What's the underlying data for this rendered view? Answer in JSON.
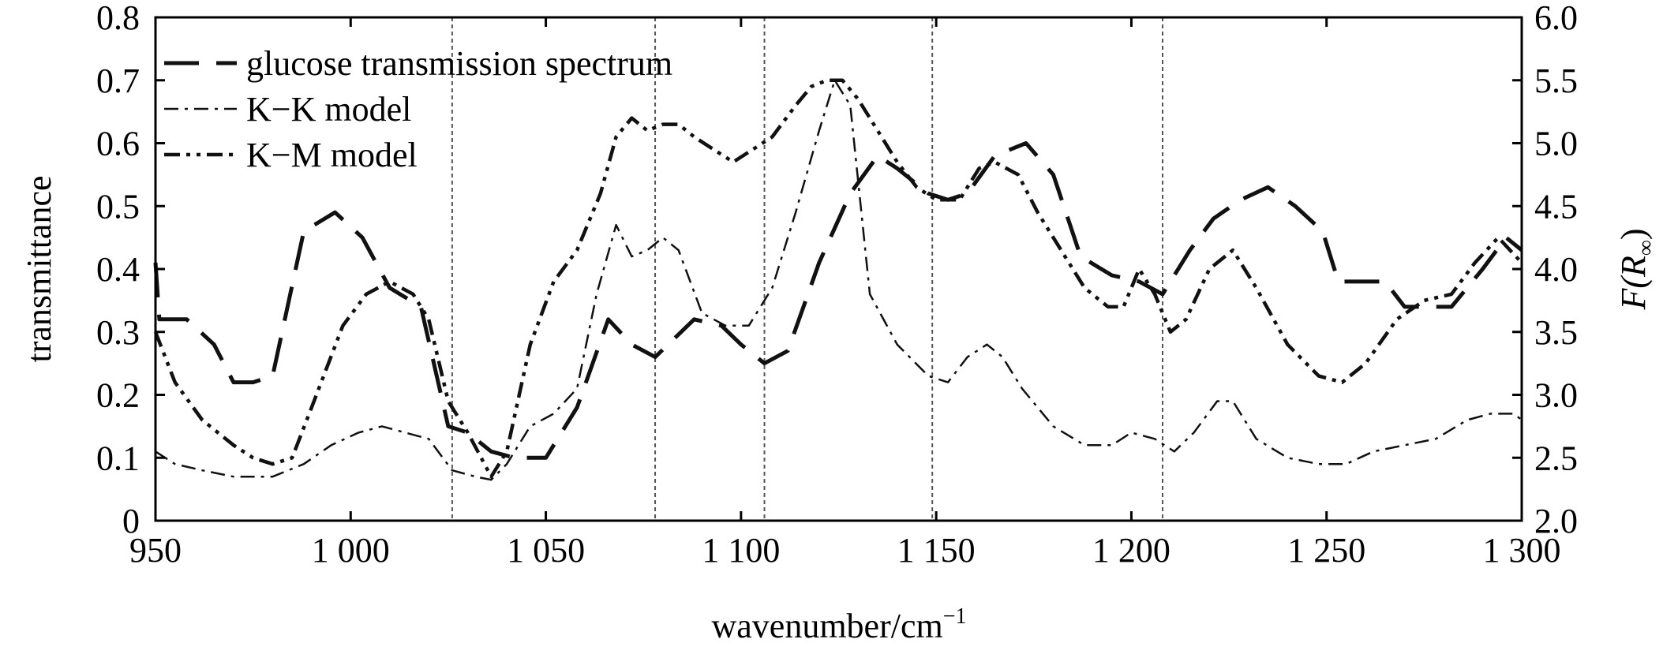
{
  "chart_data": {
    "type": "line",
    "xlabel": "wavenumber/cm",
    "xlabel_sup": "−1",
    "ylabel_left": "transmittance",
    "ylabel_right_main": "F(R",
    "ylabel_right_sub": "∞",
    "ylabel_right_close": ")",
    "xlim": [
      950,
      1300
    ],
    "ylim_left": [
      0,
      0.8
    ],
    "ylim_right": [
      2.0,
      6.0
    ],
    "x_ticks": [
      950,
      1000,
      1050,
      1100,
      1150,
      1200,
      1250,
      1300
    ],
    "x_tick_labels": [
      "950",
      "1 000",
      "1 050",
      "1 100",
      "1 150",
      "1 200",
      "1 250",
      "1 300"
    ],
    "y_left_ticks": [
      0,
      0.1,
      0.2,
      0.3,
      0.4,
      0.5,
      0.6,
      0.7,
      0.8
    ],
    "y_left_tick_labels": [
      "0",
      "0.1",
      "0.2",
      "0.3",
      "0.4",
      "0.5",
      "0.6",
      "0.7",
      "0.8"
    ],
    "y_right_ticks": [
      2.0,
      2.5,
      3.0,
      3.5,
      4.0,
      4.5,
      5.0,
      5.5,
      6.0
    ],
    "y_right_tick_labels": [
      "2.0",
      "2.5",
      "3.0",
      "3.5",
      "4.0",
      "4.5",
      "5.0",
      "5.5",
      "6.0"
    ],
    "vertical_reference_lines": [
      1026,
      1078,
      1106,
      1149,
      1208
    ],
    "legend_position": "top-left",
    "grid": false,
    "series": [
      {
        "name": "glucose transmission spectrum",
        "axis": "left",
        "dash": "long-dash",
        "x": [
          950,
          951,
          958,
          965,
          970,
          975,
          980,
          988,
          996,
          1003,
          1010,
          1018,
          1025,
          1030,
          1036,
          1042,
          1050,
          1058,
          1066,
          1072,
          1078,
          1083,
          1088,
          1095,
          1100,
          1106,
          1112,
          1120,
          1128,
          1135,
          1140,
          1148,
          1153,
          1158,
          1165,
          1173,
          1180,
          1187,
          1195,
          1202,
          1208,
          1215,
          1221,
          1228,
          1235,
          1242,
          1249,
          1253,
          1260,
          1265,
          1270,
          1276,
          1282,
          1290,
          1296,
          1300
        ],
        "values": [
          0.41,
          0.32,
          0.32,
          0.28,
          0.22,
          0.22,
          0.23,
          0.46,
          0.49,
          0.45,
          0.37,
          0.34,
          0.15,
          0.14,
          0.11,
          0.1,
          0.1,
          0.18,
          0.32,
          0.28,
          0.26,
          0.29,
          0.32,
          0.31,
          0.28,
          0.25,
          0.27,
          0.41,
          0.52,
          0.58,
          0.56,
          0.52,
          0.51,
          0.52,
          0.58,
          0.6,
          0.55,
          0.42,
          0.39,
          0.38,
          0.36,
          0.43,
          0.48,
          0.51,
          0.53,
          0.5,
          0.46,
          0.38,
          0.38,
          0.38,
          0.34,
          0.34,
          0.34,
          0.4,
          0.45,
          0.43
        ]
      },
      {
        "name": "K−K model",
        "axis": "left",
        "dash": "dash-dot",
        "x": [
          950,
          955,
          962,
          970,
          980,
          988,
          995,
          1002,
          1008,
          1014,
          1020,
          1026,
          1032,
          1036,
          1040,
          1046,
          1052,
          1058,
          1063,
          1068,
          1072,
          1076,
          1080,
          1084,
          1090,
          1096,
          1102,
          1108,
          1114,
          1120,
          1124,
          1128,
          1133,
          1140,
          1148,
          1153,
          1158,
          1163,
          1167,
          1172,
          1180,
          1188,
          1195,
          1200,
          1206,
          1211,
          1216,
          1222,
          1226,
          1232,
          1240,
          1248,
          1255,
          1262,
          1270,
          1278,
          1286,
          1292,
          1298,
          1300
        ],
        "values": [
          0.11,
          0.09,
          0.08,
          0.07,
          0.07,
          0.09,
          0.12,
          0.14,
          0.15,
          0.14,
          0.13,
          0.08,
          0.07,
          0.065,
          0.09,
          0.15,
          0.17,
          0.21,
          0.36,
          0.47,
          0.42,
          0.43,
          0.45,
          0.43,
          0.33,
          0.31,
          0.31,
          0.37,
          0.49,
          0.62,
          0.7,
          0.66,
          0.36,
          0.28,
          0.23,
          0.22,
          0.26,
          0.28,
          0.26,
          0.21,
          0.15,
          0.12,
          0.12,
          0.14,
          0.13,
          0.11,
          0.14,
          0.19,
          0.19,
          0.13,
          0.1,
          0.09,
          0.09,
          0.11,
          0.12,
          0.13,
          0.16,
          0.17,
          0.17,
          0.16
        ]
      },
      {
        "name": "K−M model",
        "axis": "left",
        "dash": "dash-dot-dot",
        "x": [
          950,
          955,
          962,
          970,
          975,
          980,
          985,
          990,
          998,
          1004,
          1010,
          1016,
          1020,
          1025,
          1030,
          1036,
          1040,
          1046,
          1052,
          1058,
          1064,
          1068,
          1072,
          1076,
          1080,
          1084,
          1088,
          1093,
          1098,
          1103,
          1108,
          1114,
          1118,
          1122,
          1126,
          1130,
          1135,
          1140,
          1145,
          1150,
          1156,
          1161,
          1165,
          1171,
          1176,
          1182,
          1188,
          1194,
          1198,
          1202,
          1206,
          1210,
          1214,
          1220,
          1226,
          1232,
          1240,
          1248,
          1254,
          1260,
          1268,
          1275,
          1282,
          1288,
          1294,
          1300
        ],
        "values": [
          0.3,
          0.22,
          0.16,
          0.12,
          0.1,
          0.09,
          0.1,
          0.18,
          0.31,
          0.36,
          0.38,
          0.36,
          0.32,
          0.19,
          0.14,
          0.07,
          0.11,
          0.28,
          0.38,
          0.43,
          0.52,
          0.61,
          0.64,
          0.62,
          0.63,
          0.63,
          0.61,
          0.59,
          0.57,
          0.59,
          0.61,
          0.66,
          0.69,
          0.7,
          0.7,
          0.67,
          0.62,
          0.57,
          0.53,
          0.51,
          0.51,
          0.56,
          0.57,
          0.55,
          0.49,
          0.43,
          0.37,
          0.34,
          0.34,
          0.4,
          0.36,
          0.3,
          0.32,
          0.4,
          0.43,
          0.37,
          0.28,
          0.23,
          0.22,
          0.25,
          0.32,
          0.35,
          0.36,
          0.41,
          0.45,
          0.41
        ]
      }
    ]
  }
}
